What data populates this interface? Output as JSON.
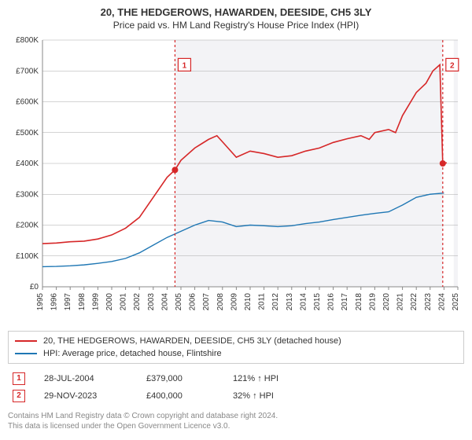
{
  "title": "20, THE HEDGEROWS, HAWARDEN, DEESIDE, CH5 3LY",
  "subtitle": "Price paid vs. HM Land Registry's House Price Index (HPI)",
  "chart": {
    "type": "line",
    "plot_background": "#ffffff",
    "shade_color": "#f3f3f6",
    "axis_color": "#888888",
    "tick_color": "#aaaaaa",
    "label_fontsize": 10,
    "x": {
      "min": 1995,
      "max": 2025,
      "tick_step": 1
    },
    "y": {
      "min": 0,
      "max": 800000,
      "tick_step": 100000,
      "prefix": "£",
      "suffix": "K",
      "divisor": 1000
    },
    "series": [
      {
        "id": "property",
        "label": "20, THE HEDGEROWS, HAWARDEN, DEESIDE, CH5 3LY (detached house)",
        "color": "#d62728",
        "width": 1.6,
        "points": [
          [
            1995,
            140000
          ],
          [
            1996,
            142000
          ],
          [
            1997,
            146000
          ],
          [
            1998,
            148000
          ],
          [
            1999,
            155000
          ],
          [
            2000,
            168000
          ],
          [
            2001,
            190000
          ],
          [
            2002,
            225000
          ],
          [
            2003,
            290000
          ],
          [
            2004,
            355000
          ],
          [
            2004.57,
            379000
          ],
          [
            2005,
            410000
          ],
          [
            2006,
            450000
          ],
          [
            2007,
            478000
          ],
          [
            2007.6,
            490000
          ],
          [
            2008,
            470000
          ],
          [
            2009,
            420000
          ],
          [
            2010,
            440000
          ],
          [
            2011,
            432000
          ],
          [
            2012,
            420000
          ],
          [
            2013,
            425000
          ],
          [
            2014,
            440000
          ],
          [
            2015,
            450000
          ],
          [
            2016,
            468000
          ],
          [
            2017,
            480000
          ],
          [
            2018,
            490000
          ],
          [
            2018.6,
            478000
          ],
          [
            2019,
            500000
          ],
          [
            2020,
            510000
          ],
          [
            2020.5,
            500000
          ],
          [
            2021,
            555000
          ],
          [
            2022,
            630000
          ],
          [
            2022.7,
            660000
          ],
          [
            2023.2,
            700000
          ],
          [
            2023.7,
            720000
          ],
          [
            2023.91,
            400000
          ],
          [
            2024.2,
            402000
          ]
        ]
      },
      {
        "id": "hpi",
        "label": "HPI: Average price, detached house, Flintshire",
        "color": "#1f77b4",
        "width": 1.4,
        "points": [
          [
            1995,
            65000
          ],
          [
            1996,
            66000
          ],
          [
            1997,
            68000
          ],
          [
            1998,
            71000
          ],
          [
            1999,
            76000
          ],
          [
            2000,
            82000
          ],
          [
            2001,
            92000
          ],
          [
            2002,
            110000
          ],
          [
            2003,
            135000
          ],
          [
            2004,
            160000
          ],
          [
            2005,
            180000
          ],
          [
            2006,
            200000
          ],
          [
            2007,
            215000
          ],
          [
            2008,
            210000
          ],
          [
            2009,
            195000
          ],
          [
            2010,
            200000
          ],
          [
            2011,
            198000
          ],
          [
            2012,
            195000
          ],
          [
            2013,
            198000
          ],
          [
            2014,
            205000
          ],
          [
            2015,
            210000
          ],
          [
            2016,
            218000
          ],
          [
            2017,
            225000
          ],
          [
            2018,
            232000
          ],
          [
            2019,
            238000
          ],
          [
            2020,
            243000
          ],
          [
            2021,
            265000
          ],
          [
            2022,
            290000
          ],
          [
            2023,
            300000
          ],
          [
            2024,
            304000
          ]
        ]
      }
    ],
    "markers": [
      {
        "n": "1",
        "x": 2004.57,
        "y": 379000,
        "color": "#d62728",
        "dot": true,
        "label_y": 720000
      },
      {
        "n": "2",
        "x": 2023.91,
        "y": 400000,
        "color": "#d62728",
        "dot": true,
        "label_y": 720000
      }
    ],
    "shaded_ranges": [
      {
        "from": 2004.57,
        "to": 2023.91
      },
      {
        "from": 2024.7,
        "to": 2025
      }
    ]
  },
  "legend": {
    "items": [
      {
        "color": "#d62728",
        "label": "20, THE HEDGEROWS, HAWARDEN, DEESIDE, CH5 3LY (detached house)"
      },
      {
        "color": "#1f77b4",
        "label": "HPI: Average price, detached house, Flintshire"
      }
    ]
  },
  "transactions": [
    {
      "n": "1",
      "color": "#d62728",
      "date": "28-JUL-2004",
      "price": "£379,000",
      "pct": "121% ↑ HPI"
    },
    {
      "n": "2",
      "color": "#d62728",
      "date": "29-NOV-2023",
      "price": "£400,000",
      "pct": "32% ↑ HPI"
    }
  ],
  "footer_line1": "Contains HM Land Registry data © Crown copyright and database right 2024.",
  "footer_line2": "This data is licensed under the Open Government Licence v3.0."
}
